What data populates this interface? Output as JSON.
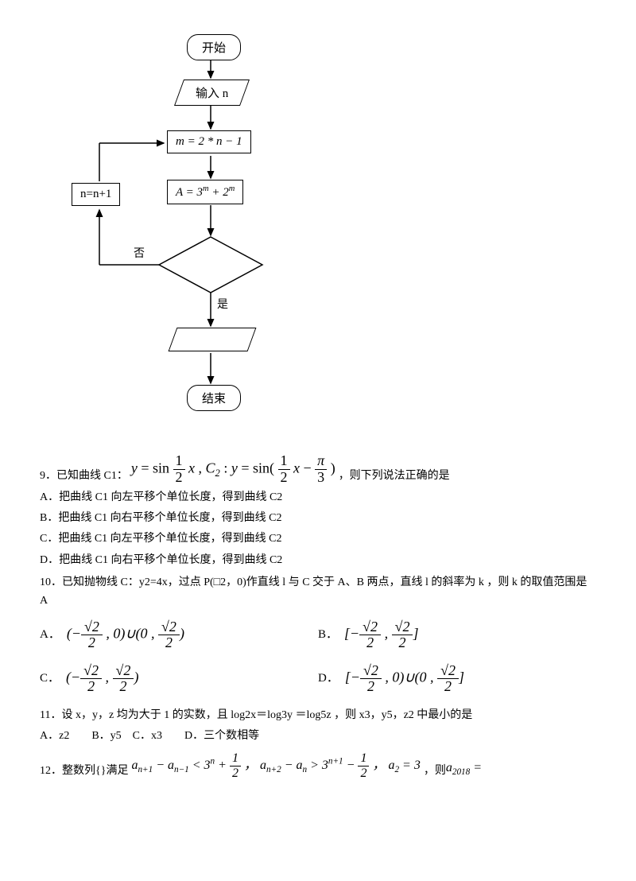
{
  "flowchart": {
    "start": "开始",
    "input": "输入 n",
    "proc1": "m = 2 * n − 1",
    "proc2_html": "A = 3<sup style='font-style:italic;font-size:0.7em'>m</sup> + 2<sup style='font-style:italic;font-size:0.7em'>m</sup>",
    "side": "n=n+1",
    "no": "否",
    "yes": "是",
    "end": "结束",
    "colors": {
      "stroke": "#000000",
      "fill": "#ffffff"
    }
  },
  "q9": {
    "stem_prefix": "9．已知曲线 C1：",
    "formula_img_alt": "y = sin(1/2 x) , C2 : y = sin(1/2 x − π/3)",
    "stem_suffix": "，则下列说法正确的是",
    "A": "A．把曲线 C1 向左平移个单位长度，得到曲线 C2",
    "B": "B．把曲线 C1 向右平移个单位长度，得到曲线 C2",
    "C": "C．把曲线 C1 向左平移个单位长度，得到曲线 C2",
    "D": "D．把曲线 C1 向右平移个单位长度，得到曲线 C2"
  },
  "q10": {
    "stem": "10．已知抛物线 C：y2=4x，过点 P(□2，0)作直线 l 与 C 交于 A、B 两点，直线 l 的斜率为 k ，则 k 的取值范围是 A",
    "opts": {
      "A_label": "A．",
      "B_label": "B．",
      "C_label": "C．",
      "D_label": "D．",
      "sqrt2_over_2": "√2/2"
    }
  },
  "q11": {
    "stem": "11．设 x，y，z 均为大于 1 的实数，且 log2x＝log3y ＝log5z ，则 x3，y5，z2 中最小的是",
    "opts": "A．z2  B．y5 C．x3  D．三个数相等"
  },
  "q12": {
    "prefix": "12．整数列{}满足",
    "suffix": "，则"
  }
}
